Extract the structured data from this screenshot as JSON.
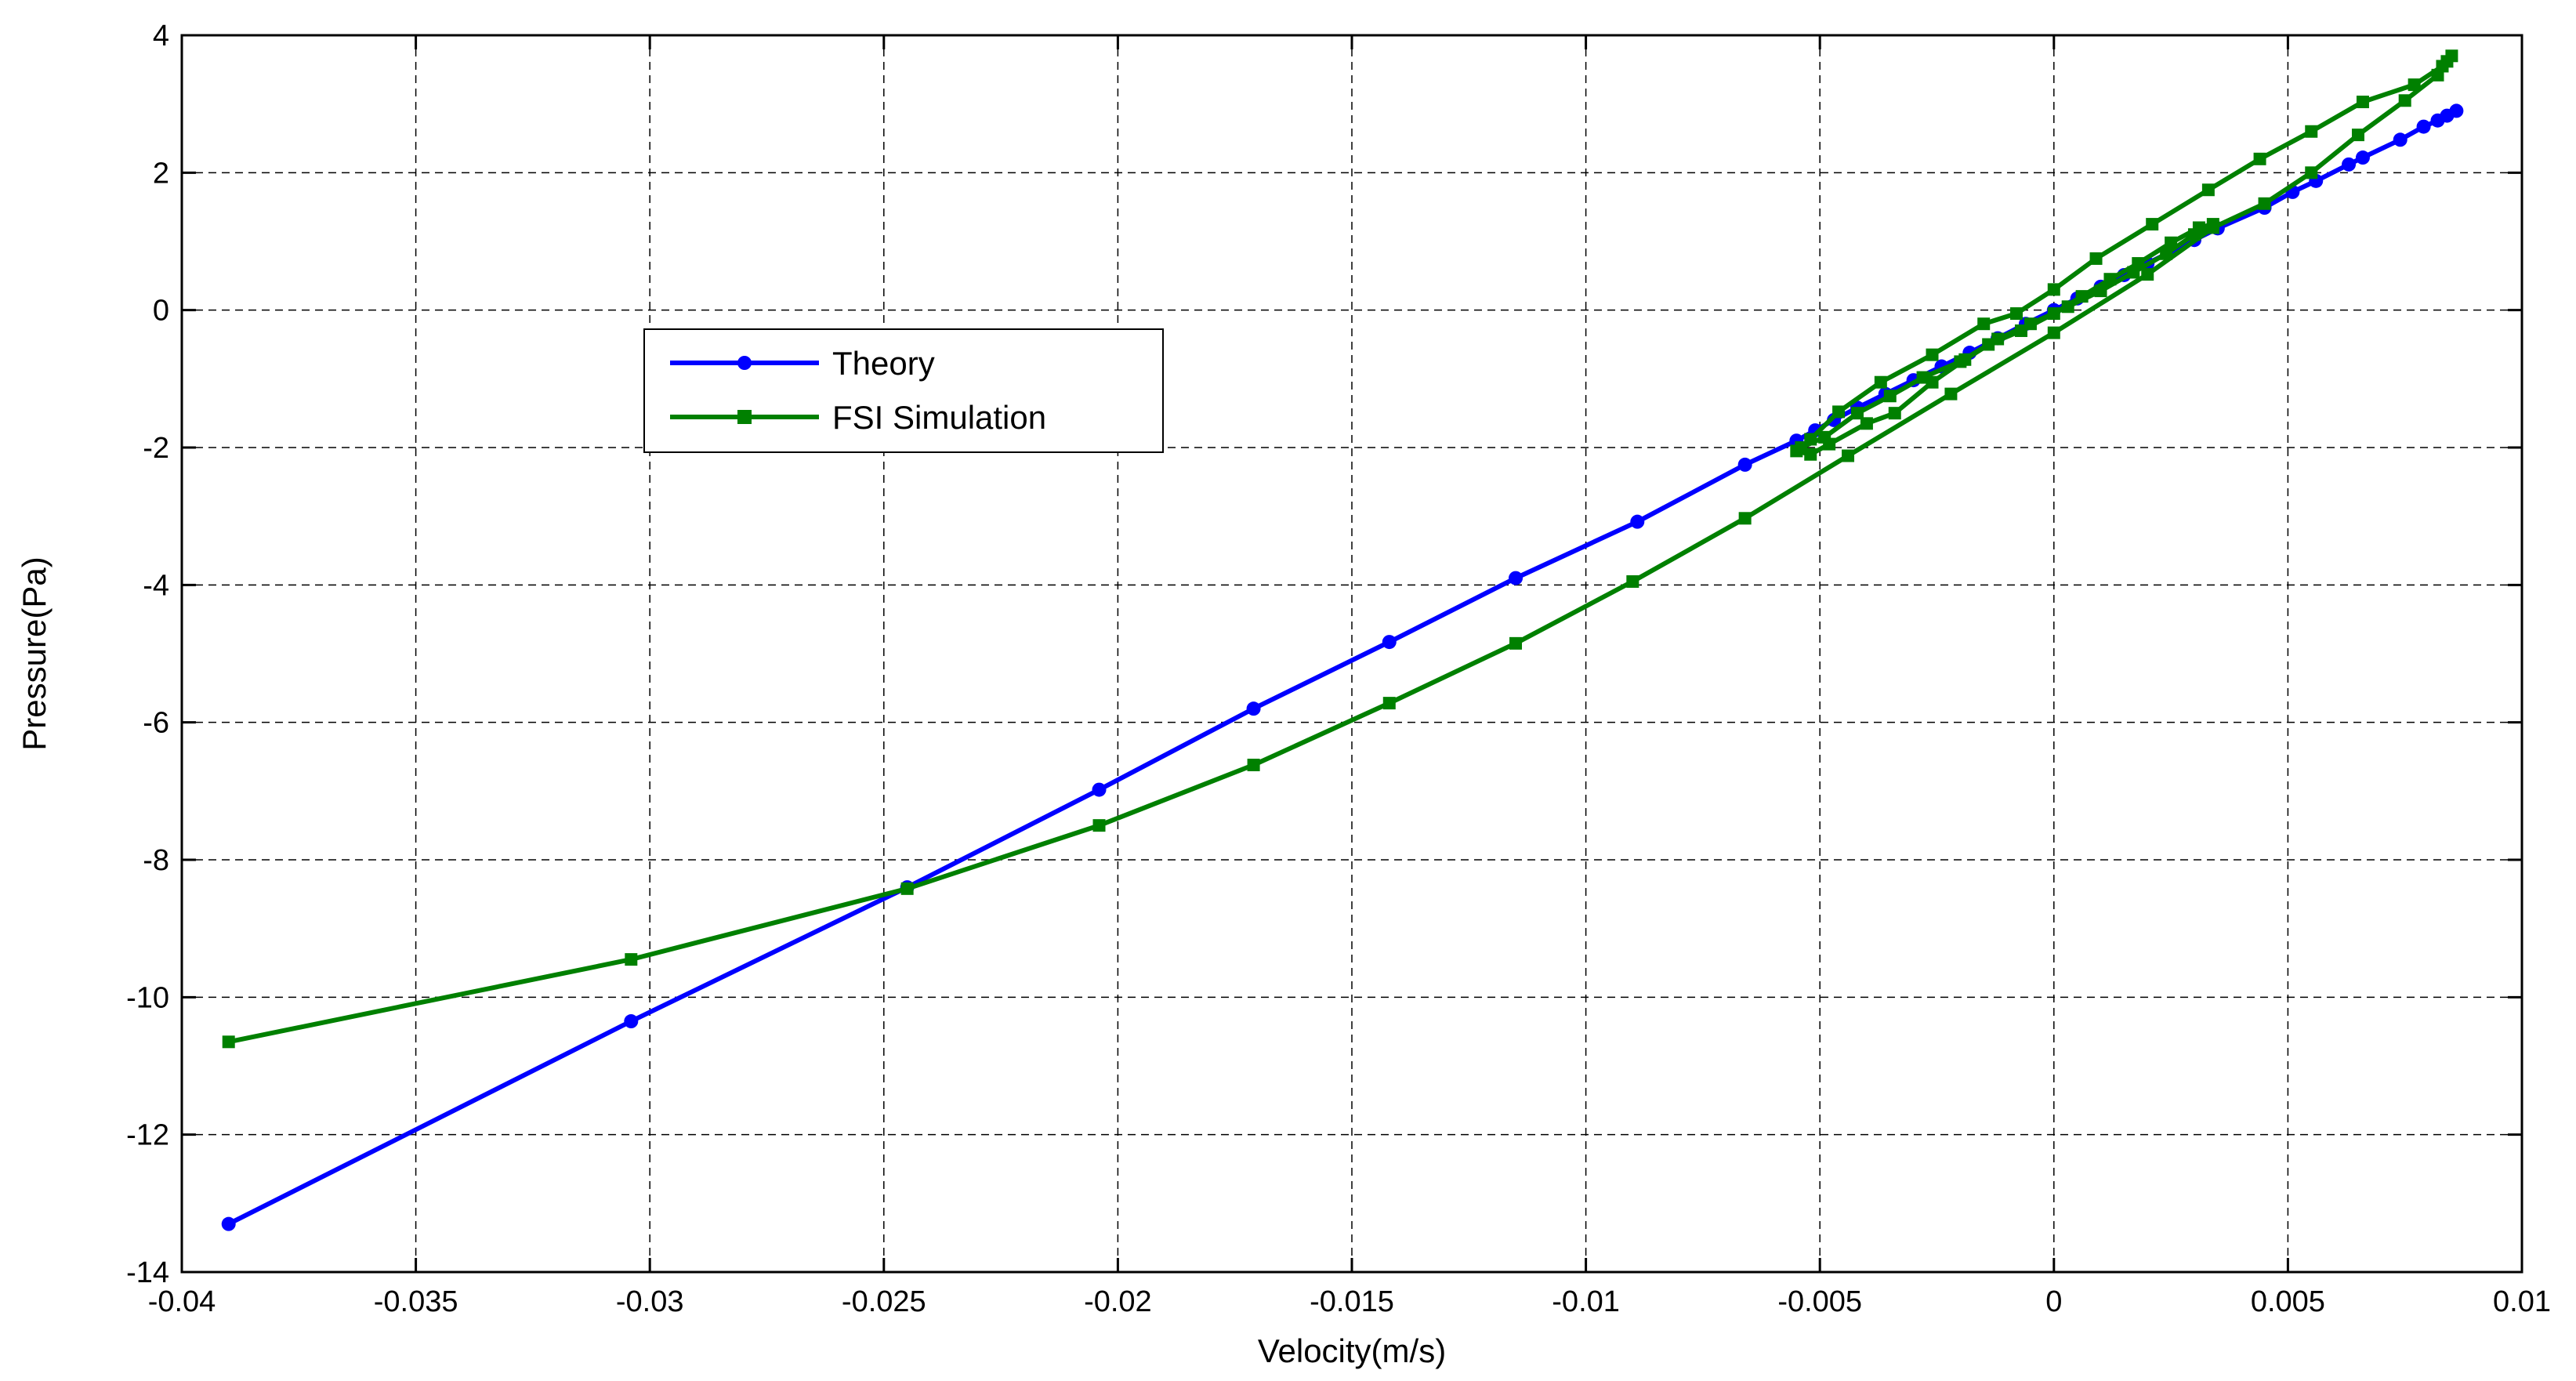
{
  "chart_data": {
    "type": "line",
    "xlabel": "Velocity(m/s)",
    "ylabel": "Pressure(Pa)",
    "xlim": [
      -0.04,
      0.01
    ],
    "ylim": [
      -14,
      4
    ],
    "xticks": [
      -0.04,
      -0.035,
      -0.03,
      -0.025,
      -0.02,
      -0.015,
      -0.01,
      -0.005,
      0,
      0.005,
      0.01
    ],
    "xtick_labels": [
      "-0.04",
      "-0.035",
      "-0.03",
      "-0.025",
      "-0.02",
      "-0.015",
      "-0.01",
      "-0.005",
      "0",
      "0.005",
      "0.01"
    ],
    "yticks": [
      4,
      2,
      0,
      -2,
      -4,
      -6,
      -8,
      -10,
      -12,
      -14
    ],
    "ytick_labels": [
      "4",
      "2",
      "0",
      "-2",
      "-4",
      "-6",
      "-8",
      "-10",
      "-12",
      "-14"
    ],
    "grid": true,
    "grid_style": "dashed",
    "legend_position": "upper-left-center",
    "series": [
      {
        "name": "Theory",
        "color": "#0000ff",
        "marker": "circle",
        "points": [
          [
            -0.039,
            -13.3
          ],
          [
            -0.0304,
            -10.35
          ],
          [
            -0.0245,
            -8.4
          ],
          [
            -0.0204,
            -6.98
          ],
          [
            -0.0171,
            -5.8
          ],
          [
            -0.0142,
            -4.83
          ],
          [
            -0.0115,
            -3.9
          ],
          [
            -0.0089,
            -3.08
          ],
          [
            -0.0066,
            -2.25
          ],
          [
            -0.0055,
            -1.9
          ],
          [
            -0.0051,
            -1.75
          ],
          [
            -0.0047,
            -1.6
          ],
          [
            -0.0042,
            -1.42
          ],
          [
            -0.0036,
            -1.22
          ],
          [
            -0.003,
            -1.02
          ],
          [
            -0.0024,
            -0.82
          ],
          [
            -0.0018,
            -0.62
          ],
          [
            -0.0012,
            -0.41
          ],
          [
            -0.0006,
            -0.2
          ],
          [
            0.0,
            0.0
          ],
          [
            0.0005,
            0.17
          ],
          [
            0.001,
            0.34
          ],
          [
            0.0015,
            0.51
          ],
          [
            0.002,
            0.68
          ],
          [
            0.0025,
            0.85
          ],
          [
            0.003,
            1.02
          ],
          [
            0.0035,
            1.19
          ],
          [
            0.0045,
            1.49
          ],
          [
            0.0051,
            1.72
          ],
          [
            0.0056,
            1.88
          ],
          [
            0.0063,
            2.12
          ],
          [
            0.0066,
            2.22
          ],
          [
            0.0074,
            2.48
          ],
          [
            0.0079,
            2.67
          ],
          [
            0.0082,
            2.76
          ],
          [
            0.0084,
            2.83
          ],
          [
            0.0086,
            2.9
          ]
        ]
      },
      {
        "name": "FSI Simulation",
        "color": "#008000",
        "marker": "square",
        "points": [
          [
            -0.039,
            -10.65
          ],
          [
            -0.0304,
            -9.45
          ],
          [
            -0.0245,
            -8.42
          ],
          [
            -0.0204,
            -7.5
          ],
          [
            -0.0171,
            -6.62
          ],
          [
            -0.0142,
            -5.72
          ],
          [
            -0.0115,
            -4.85
          ],
          [
            -0.009,
            -3.95
          ],
          [
            -0.0066,
            -3.03
          ],
          [
            -0.0044,
            -2.12
          ],
          [
            -0.0022,
            -1.22
          ],
          [
            0.0,
            -0.33
          ],
          [
            0.002,
            0.52
          ],
          [
            0.0034,
            1.2
          ],
          [
            0.0045,
            1.55
          ],
          [
            0.0055,
            2.0
          ],
          [
            0.0065,
            2.55
          ],
          [
            0.0075,
            3.05
          ],
          [
            0.0082,
            3.42
          ],
          [
            0.0084,
            3.62
          ],
          [
            0.0085,
            3.7
          ],
          [
            0.0083,
            3.55
          ],
          [
            0.0077,
            3.28
          ],
          [
            0.0066,
            3.03
          ],
          [
            0.0055,
            2.6
          ],
          [
            0.0044,
            2.2
          ],
          [
            0.0033,
            1.75
          ],
          [
            0.0021,
            1.25
          ],
          [
            0.0009,
            0.75
          ],
          [
            0.0,
            0.3
          ],
          [
            -0.0008,
            -0.05
          ],
          [
            -0.0015,
            -0.2
          ],
          [
            -0.0026,
            -0.65
          ],
          [
            -0.0037,
            -1.05
          ],
          [
            -0.0046,
            -1.48
          ],
          [
            -0.0052,
            -1.88
          ],
          [
            -0.0055,
            -2.05
          ],
          [
            -0.0052,
            -2.1
          ],
          [
            -0.0048,
            -1.95
          ],
          [
            -0.004,
            -1.65
          ],
          [
            -0.0034,
            -1.5
          ],
          [
            -0.0026,
            -1.05
          ],
          [
            -0.0019,
            -0.72
          ],
          [
            -0.0012,
            -0.42
          ],
          [
            -0.0005,
            -0.2
          ],
          [
            0.0003,
            0.05
          ],
          [
            0.001,
            0.28
          ],
          [
            0.0017,
            0.55
          ],
          [
            0.0024,
            0.82
          ],
          [
            0.003,
            1.1
          ],
          [
            0.0034,
            1.25
          ],
          [
            0.0031,
            1.2
          ],
          [
            0.0025,
            0.98
          ],
          [
            0.0018,
            0.68
          ],
          [
            0.0012,
            0.45
          ],
          [
            0.0006,
            0.2
          ],
          [
            0.0,
            -0.05
          ],
          [
            -0.0007,
            -0.3
          ],
          [
            -0.0014,
            -0.5
          ],
          [
            -0.002,
            -0.75
          ],
          [
            -0.0028,
            -0.98
          ],
          [
            -0.0035,
            -1.25
          ],
          [
            -0.0042,
            -1.5
          ],
          [
            -0.0049,
            -1.85
          ],
          [
            -0.0054,
            -2.0
          ]
        ]
      }
    ]
  }
}
